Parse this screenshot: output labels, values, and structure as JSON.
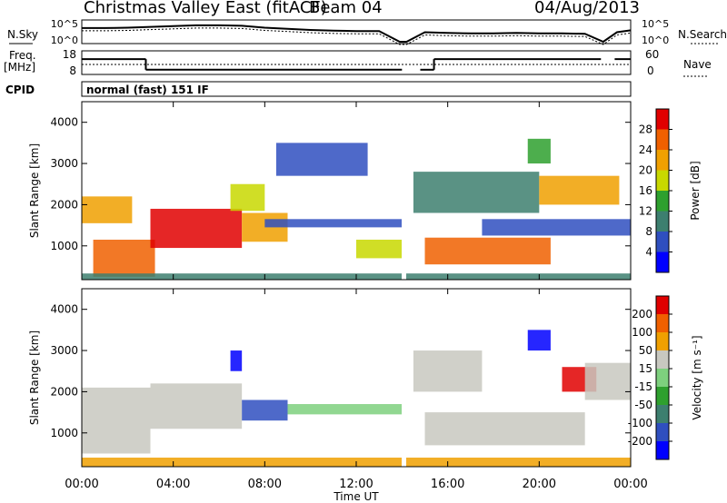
{
  "header": {
    "title": "Christmas Valley East (fitACF)",
    "beam": "Beam 04",
    "date": "04/Aug/2013"
  },
  "labels": {
    "nsky": "N.Sky",
    "nsearch": "N.Search",
    "freq": "Freq.",
    "freq_unit": "[MHz]",
    "nave": "Nave",
    "cpid": "CPID",
    "mode": "normal (fast) 151 IF",
    "slant_range": "Slant Range [km]",
    "x_title": "Time UT",
    "power_title": "Power [dB]",
    "velocity_title": "Velocity [m s⁻¹]"
  },
  "chart_data": [
    {
      "type": "line",
      "name": "noise",
      "left_ticks": [
        "10^5",
        "10^0"
      ],
      "right_ticks": [
        "10^5",
        "10^0"
      ],
      "hours": [
        0,
        1,
        2,
        3,
        4,
        5,
        6,
        7,
        8,
        9,
        10,
        11,
        12,
        13,
        13.9,
        14.2,
        15,
        16,
        17,
        18,
        19,
        20,
        21,
        22,
        22.8,
        23.4,
        24
      ],
      "level": [
        0.72,
        0.72,
        0.74,
        0.78,
        0.82,
        0.86,
        0.86,
        0.84,
        0.74,
        0.68,
        0.62,
        0.58,
        0.56,
        0.56,
        0.0,
        0.0,
        0.5,
        0.46,
        0.44,
        0.44,
        0.46,
        0.44,
        0.44,
        0.42,
        0.0,
        0.5,
        0.6
      ]
    },
    {
      "type": "line",
      "name": "frequency",
      "left_ticks": [
        "18",
        "8"
      ],
      "right_ticks": [
        "60",
        "0"
      ],
      "segments": [
        {
          "start": 0,
          "end": 2.8,
          "mhz": 14.5
        },
        {
          "start": 2.8,
          "end": 14.0,
          "mhz": 10.0
        },
        {
          "start": 14.8,
          "end": 15.4,
          "mhz": 10.0
        },
        {
          "start": 15.4,
          "end": 22.7,
          "mhz": 14.5
        },
        {
          "start": 23.3,
          "end": 24,
          "mhz": 14.5
        }
      ]
    },
    {
      "type": "heatmap",
      "name": "power",
      "xlabel": "Time UT",
      "ylabel": "Slant Range [km]",
      "xlim": [
        0,
        24
      ],
      "ylim": [
        180,
        4500
      ],
      "x_ticks": [
        "00:00",
        "04:00",
        "08:00",
        "12:00",
        "16:00",
        "20:00",
        "00:00"
      ],
      "y_ticks": [
        1000,
        2000,
        3000,
        4000
      ],
      "colorbar": {
        "title": "Power [dB]",
        "ticks": [
          4,
          8,
          12,
          16,
          20,
          24,
          28
        ],
        "colors": [
          "#0000ff",
          "#2f4fbf",
          "#3d7f6f",
          "#2ea02e",
          "#c8d800",
          "#f0a000",
          "#f06000",
          "#e00000"
        ]
      },
      "bands": [
        {
          "x0": 0,
          "x1": 2.2,
          "y0": 1550,
          "y1": 2200,
          "level": 5
        },
        {
          "x0": 0.5,
          "x1": 3.2,
          "y0": 250,
          "y1": 1150,
          "level": 6
        },
        {
          "x0": 3.0,
          "x1": 7.0,
          "y0": 950,
          "y1": 1900,
          "level": 7
        },
        {
          "x0": 7.0,
          "x1": 9.0,
          "y0": 1100,
          "y1": 1800,
          "level": 5
        },
        {
          "x0": 6.5,
          "x1": 8.0,
          "y0": 1850,
          "y1": 2500,
          "level": 4
        },
        {
          "x0": 8.0,
          "x1": 14.0,
          "y0": 1450,
          "y1": 1650,
          "level": 1
        },
        {
          "x0": 8.5,
          "x1": 12.5,
          "y0": 2700,
          "y1": 3500,
          "level": 1
        },
        {
          "x0": 12.0,
          "x1": 14.0,
          "y0": 700,
          "y1": 1150,
          "level": 4
        },
        {
          "x0": 15.0,
          "x1": 20.5,
          "y0": 550,
          "y1": 1200,
          "level": 6
        },
        {
          "x0": 14.5,
          "x1": 20.0,
          "y0": 1800,
          "y1": 2800,
          "level": 2
        },
        {
          "x0": 17.5,
          "x1": 24,
          "y0": 1250,
          "y1": 1650,
          "level": 1
        },
        {
          "x0": 20.0,
          "x1": 23.5,
          "y0": 2000,
          "y1": 2700,
          "level": 5
        },
        {
          "x0": 19.5,
          "x1": 20.5,
          "y0": 3000,
          "y1": 3600,
          "level": 3
        },
        {
          "x0": 0,
          "x1": 24,
          "y0": 180,
          "y1": 330,
          "level": 2
        }
      ]
    },
    {
      "type": "heatmap",
      "name": "velocity",
      "xlabel": "Time UT",
      "ylabel": "Slant Range [km]",
      "xlim": [
        0,
        24
      ],
      "ylim": [
        180,
        4500
      ],
      "x_ticks": [
        "00:00",
        "04:00",
        "08:00",
        "12:00",
        "16:00",
        "20:00",
        "00:00"
      ],
      "y_ticks": [
        1000,
        2000,
        3000,
        4000
      ],
      "colorbar": {
        "title": "Velocity [m s⁻¹]",
        "ticks": [
          "200",
          "100",
          "50",
          "15",
          "-15",
          "-50",
          "-100",
          "-200"
        ],
        "colors": [
          "#0000ff",
          "#2f4fbf",
          "#3d7f6f",
          "#2ea02e",
          "#7ed07e",
          "#c8c8c0",
          "#f0a000",
          "#f06000",
          "#e00000"
        ]
      },
      "bands": [
        {
          "x0": 0,
          "x1": 3.0,
          "y0": 500,
          "y1": 2100,
          "level": 5
        },
        {
          "x0": 3.0,
          "x1": 7.0,
          "y0": 1100,
          "y1": 2200,
          "level": 5
        },
        {
          "x0": 6.5,
          "x1": 7.0,
          "y0": 2500,
          "y1": 3000,
          "level": 0
        },
        {
          "x0": 7.0,
          "x1": 9.0,
          "y0": 1300,
          "y1": 1800,
          "level": 1
        },
        {
          "x0": 9.0,
          "x1": 14.0,
          "y0": 1450,
          "y1": 1700,
          "level": 4
        },
        {
          "x0": 15.0,
          "x1": 22.0,
          "y0": 700,
          "y1": 1500,
          "level": 5
        },
        {
          "x0": 14.5,
          "x1": 17.5,
          "y0": 2000,
          "y1": 3000,
          "level": 5
        },
        {
          "x0": 19.5,
          "x1": 20.5,
          "y0": 3000,
          "y1": 3500,
          "level": 0
        },
        {
          "x0": 21.0,
          "x1": 22.5,
          "y0": 2000,
          "y1": 2600,
          "level": 8
        },
        {
          "x0": 22.0,
          "x1": 24,
          "y0": 1800,
          "y1": 2700,
          "level": 5
        },
        {
          "x0": 0,
          "x1": 24,
          "y0": 180,
          "y1": 400,
          "level": 6
        }
      ]
    }
  ]
}
